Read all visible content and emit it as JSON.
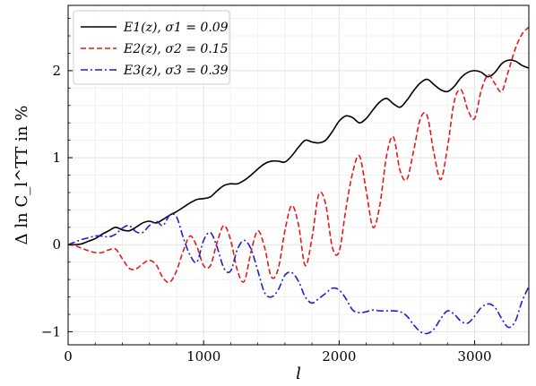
{
  "chart_data": {
    "type": "line",
    "title": "",
    "xlabel": "l",
    "ylabel": "Δ ln C_l^TT in %",
    "xlim": [
      0,
      3400
    ],
    "ylim": [
      -1.15,
      2.75
    ],
    "grid": true,
    "legend_position": "top-left",
    "x_ticks": [
      0,
      1000,
      2000,
      3000
    ],
    "x_tick_labels": [
      "0",
      "1000",
      "2000",
      "3000"
    ],
    "y_ticks": [
      -1,
      0,
      1,
      2
    ],
    "y_tick_labels": [
      "−1",
      "0",
      "1",
      "2"
    ],
    "series": [
      {
        "name": "E1(z), σ1 = 0.09",
        "color": "#000000",
        "style": "solid",
        "x": [
          0,
          50,
          100,
          150,
          200,
          250,
          300,
          350,
          400,
          450,
          500,
          550,
          600,
          650,
          700,
          750,
          800,
          850,
          900,
          950,
          1000,
          1050,
          1100,
          1150,
          1200,
          1250,
          1300,
          1350,
          1400,
          1450,
          1500,
          1550,
          1600,
          1650,
          1700,
          1750,
          1800,
          1850,
          1900,
          1950,
          2000,
          2050,
          2100,
          2150,
          2200,
          2250,
          2300,
          2350,
          2400,
          2450,
          2500,
          2550,
          2600,
          2650,
          2700,
          2750,
          2800,
          2850,
          2900,
          2950,
          3000,
          3050,
          3100,
          3150,
          3200,
          3250,
          3300,
          3350,
          3400
        ],
        "values": [
          0,
          0.0,
          0.01,
          0.04,
          0.07,
          0.12,
          0.16,
          0.2,
          0.17,
          0.16,
          0.2,
          0.25,
          0.27,
          0.25,
          0.29,
          0.34,
          0.38,
          0.43,
          0.48,
          0.52,
          0.53,
          0.55,
          0.62,
          0.68,
          0.7,
          0.7,
          0.74,
          0.8,
          0.87,
          0.93,
          0.96,
          0.96,
          0.95,
          1.02,
          1.12,
          1.2,
          1.18,
          1.17,
          1.2,
          1.3,
          1.42,
          1.48,
          1.46,
          1.4,
          1.45,
          1.55,
          1.64,
          1.68,
          1.62,
          1.58,
          1.66,
          1.77,
          1.86,
          1.9,
          1.84,
          1.78,
          1.76,
          1.82,
          1.92,
          1.98,
          2.0,
          1.98,
          1.93,
          1.98,
          2.08,
          2.12,
          2.11,
          2.06,
          2.03
        ]
      },
      {
        "name": "E2(z), σ2 = 0.15",
        "color": "#e41a1c",
        "style": "dashed",
        "x": [
          0,
          50,
          100,
          150,
          200,
          250,
          300,
          350,
          400,
          450,
          500,
          550,
          600,
          650,
          700,
          750,
          800,
          850,
          900,
          950,
          1000,
          1050,
          1100,
          1150,
          1200,
          1250,
          1300,
          1350,
          1400,
          1450,
          1500,
          1550,
          1600,
          1650,
          1700,
          1750,
          1800,
          1850,
          1900,
          1950,
          2000,
          2050,
          2100,
          2150,
          2200,
          2250,
          2300,
          2350,
          2400,
          2450,
          2500,
          2550,
          2600,
          2650,
          2700,
          2750,
          2800,
          2850,
          2900,
          2950,
          3000,
          3050,
          3100,
          3150,
          3200,
          3250,
          3300,
          3350,
          3400
        ],
        "values": [
          0,
          -0.01,
          -0.04,
          -0.07,
          -0.09,
          -0.09,
          -0.06,
          -0.05,
          -0.16,
          -0.27,
          -0.28,
          -0.22,
          -0.18,
          -0.23,
          -0.38,
          -0.43,
          -0.3,
          -0.07,
          0.1,
          -0.02,
          -0.24,
          -0.24,
          0.03,
          0.22,
          0.05,
          -0.3,
          -0.42,
          -0.08,
          0.16,
          -0.03,
          -0.37,
          -0.28,
          0.16,
          0.45,
          0.23,
          -0.24,
          0.08,
          0.58,
          0.47,
          -0.03,
          -0.08,
          0.41,
          0.83,
          1.02,
          0.62,
          0.2,
          0.45,
          1.02,
          1.24,
          0.85,
          0.75,
          1.08,
          1.45,
          1.48,
          1.05,
          0.75,
          1.12,
          1.65,
          1.78,
          1.55,
          1.45,
          1.78,
          1.95,
          1.85,
          1.76,
          2.0,
          2.25,
          2.42,
          2.5
        ]
      },
      {
        "name": "E3(z), σ3 = 0.39",
        "color": "#1f1fcf",
        "style": "dashdot",
        "x": [
          0,
          50,
          100,
          150,
          200,
          250,
          300,
          350,
          400,
          450,
          500,
          550,
          600,
          650,
          700,
          750,
          800,
          850,
          900,
          950,
          1000,
          1050,
          1100,
          1150,
          1200,
          1250,
          1300,
          1350,
          1400,
          1450,
          1500,
          1550,
          1600,
          1650,
          1700,
          1750,
          1800,
          1850,
          1900,
          1950,
          2000,
          2050,
          2100,
          2150,
          2200,
          2250,
          2300,
          2350,
          2400,
          2450,
          2500,
          2550,
          2600,
          2650,
          2700,
          2750,
          2800,
          2850,
          2900,
          2950,
          3000,
          3050,
          3100,
          3150,
          3200,
          3250,
          3300,
          3350,
          3400
        ],
        "values": [
          0,
          0.03,
          0.06,
          0.08,
          0.1,
          0.1,
          0.09,
          0.12,
          0.19,
          0.22,
          0.15,
          0.14,
          0.22,
          0.27,
          0.22,
          0.34,
          0.32,
          0.08,
          -0.12,
          -0.2,
          0.05,
          0.14,
          -0.03,
          -0.27,
          -0.3,
          -0.05,
          0.05,
          -0.05,
          -0.3,
          -0.55,
          -0.6,
          -0.52,
          -0.35,
          -0.32,
          -0.42,
          -0.6,
          -0.67,
          -0.62,
          -0.56,
          -0.5,
          -0.52,
          -0.62,
          -0.75,
          -0.78,
          -0.77,
          -0.75,
          -0.76,
          -0.76,
          -0.76,
          -0.77,
          -0.82,
          -0.92,
          -1.0,
          -1.02,
          -0.97,
          -0.85,
          -0.76,
          -0.8,
          -0.88,
          -0.9,
          -0.82,
          -0.72,
          -0.68,
          -0.72,
          -0.85,
          -0.95,
          -0.88,
          -0.65,
          -0.48
        ]
      }
    ]
  }
}
